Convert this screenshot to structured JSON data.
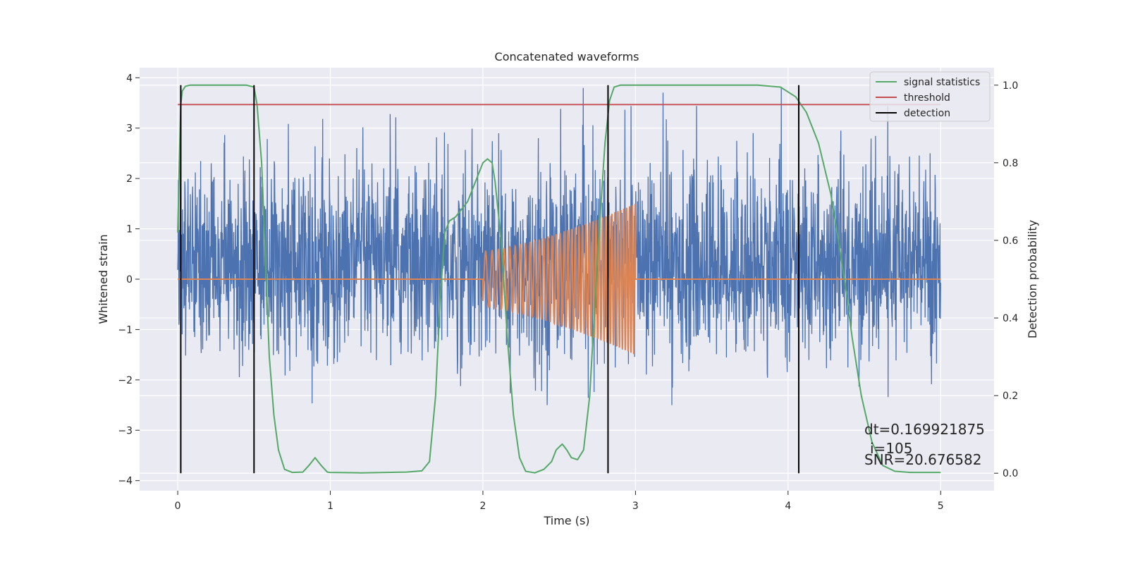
{
  "chart_data": {
    "type": "line",
    "title": "Concatenated waveforms",
    "xlabel": "Time (s)",
    "ylabel": "Whitened strain",
    "ylabel_right": "Detection probability",
    "xlim": [
      -0.25,
      5.35
    ],
    "ylim": [
      -4.2,
      4.2
    ],
    "ylim_right": [
      -0.045,
      1.045
    ],
    "x_ticks": [
      0,
      1,
      2,
      3,
      4,
      5
    ],
    "x_tick_labels": [
      "0",
      "1",
      "2",
      "3",
      "4",
      "5"
    ],
    "y_ticks": [
      -4,
      -3,
      -2,
      -1,
      0,
      1,
      2,
      3,
      4
    ],
    "y_tick_labels": [
      "−4",
      "−3",
      "−2",
      "−1",
      "0",
      "1",
      "2",
      "3",
      "4"
    ],
    "y_right_ticks": [
      0.0,
      0.2,
      0.4,
      0.6,
      0.8,
      1.0
    ],
    "y_right_tick_labels": [
      "0.0",
      "0.2",
      "0.4",
      "0.6",
      "0.8",
      "1.0"
    ],
    "grid": true,
    "legend_position": "top-right",
    "colors": {
      "strain": "#4c72b0",
      "template": "#dd8452",
      "signal_statistics": "#55a868",
      "threshold": "#c44e52",
      "detection": "#000000",
      "background": "#eaeaf2",
      "grid": "#ffffff"
    },
    "series": [
      {
        "name": "strain",
        "kind": "noise",
        "x_range": [
          0,
          5
        ],
        "y_min": -2.5,
        "y_max": 3.8
      },
      {
        "name": "template",
        "kind": "chirp",
        "x_range": [
          2,
          3
        ],
        "amp_start": 0.55,
        "amp_end": 1.5,
        "freq_start": 22,
        "freq_end": 55
      },
      {
        "name": "signal statistics",
        "axis": "right",
        "x": [
          0,
          0.01,
          0.02,
          0.03,
          0.05,
          0.08,
          0.12,
          0.2,
          0.45,
          0.5,
          0.52,
          0.55,
          0.58,
          0.6,
          0.63,
          0.66,
          0.7,
          0.75,
          0.82,
          0.86,
          0.9,
          0.94,
          0.98,
          1.0,
          1.2,
          1.5,
          1.6,
          1.65,
          1.69,
          1.72,
          1.75,
          1.78,
          1.82,
          1.9,
          1.97,
          2.0,
          2.03,
          2.06,
          2.08,
          2.12,
          2.16,
          2.2,
          2.24,
          2.28,
          2.34,
          2.4,
          2.45,
          2.48,
          2.52,
          2.55,
          2.58,
          2.62,
          2.66,
          2.7,
          2.75,
          2.8,
          2.83,
          2.86,
          2.9,
          3.0,
          3.5,
          3.8,
          3.95,
          4.05,
          4.12,
          4.2,
          4.28,
          4.33,
          4.38,
          4.42,
          4.48,
          4.55,
          4.62,
          4.7,
          4.8,
          5.0
        ],
        "values": [
          0.62,
          0.8,
          0.95,
          0.985,
          0.997,
          1.0,
          1.0,
          1.0,
          1.0,
          0.995,
          0.95,
          0.8,
          0.5,
          0.3,
          0.15,
          0.06,
          0.01,
          0.002,
          0.003,
          0.02,
          0.04,
          0.02,
          0.003,
          0.002,
          0.001,
          0.003,
          0.006,
          0.03,
          0.2,
          0.45,
          0.62,
          0.65,
          0.66,
          0.7,
          0.77,
          0.8,
          0.81,
          0.8,
          0.75,
          0.6,
          0.35,
          0.15,
          0.04,
          0.005,
          0.001,
          0.01,
          0.03,
          0.06,
          0.075,
          0.06,
          0.04,
          0.035,
          0.06,
          0.2,
          0.55,
          0.85,
          0.96,
          0.995,
          1.0,
          1.0,
          1.0,
          1.0,
          0.995,
          0.97,
          0.93,
          0.85,
          0.72,
          0.6,
          0.47,
          0.35,
          0.2,
          0.08,
          0.02,
          0.005,
          0.002,
          0.002
        ]
      },
      {
        "name": "threshold",
        "axis": "right",
        "x": [
          0,
          5
        ],
        "values": [
          0.95,
          0.95
        ]
      },
      {
        "name": "detection",
        "kind": "vlines",
        "x": [
          0.02,
          0.5,
          2.82,
          4.07
        ]
      }
    ],
    "annotations": [
      "dt=0.169921875",
      "i=105",
      "SNR=20.676582"
    ]
  }
}
